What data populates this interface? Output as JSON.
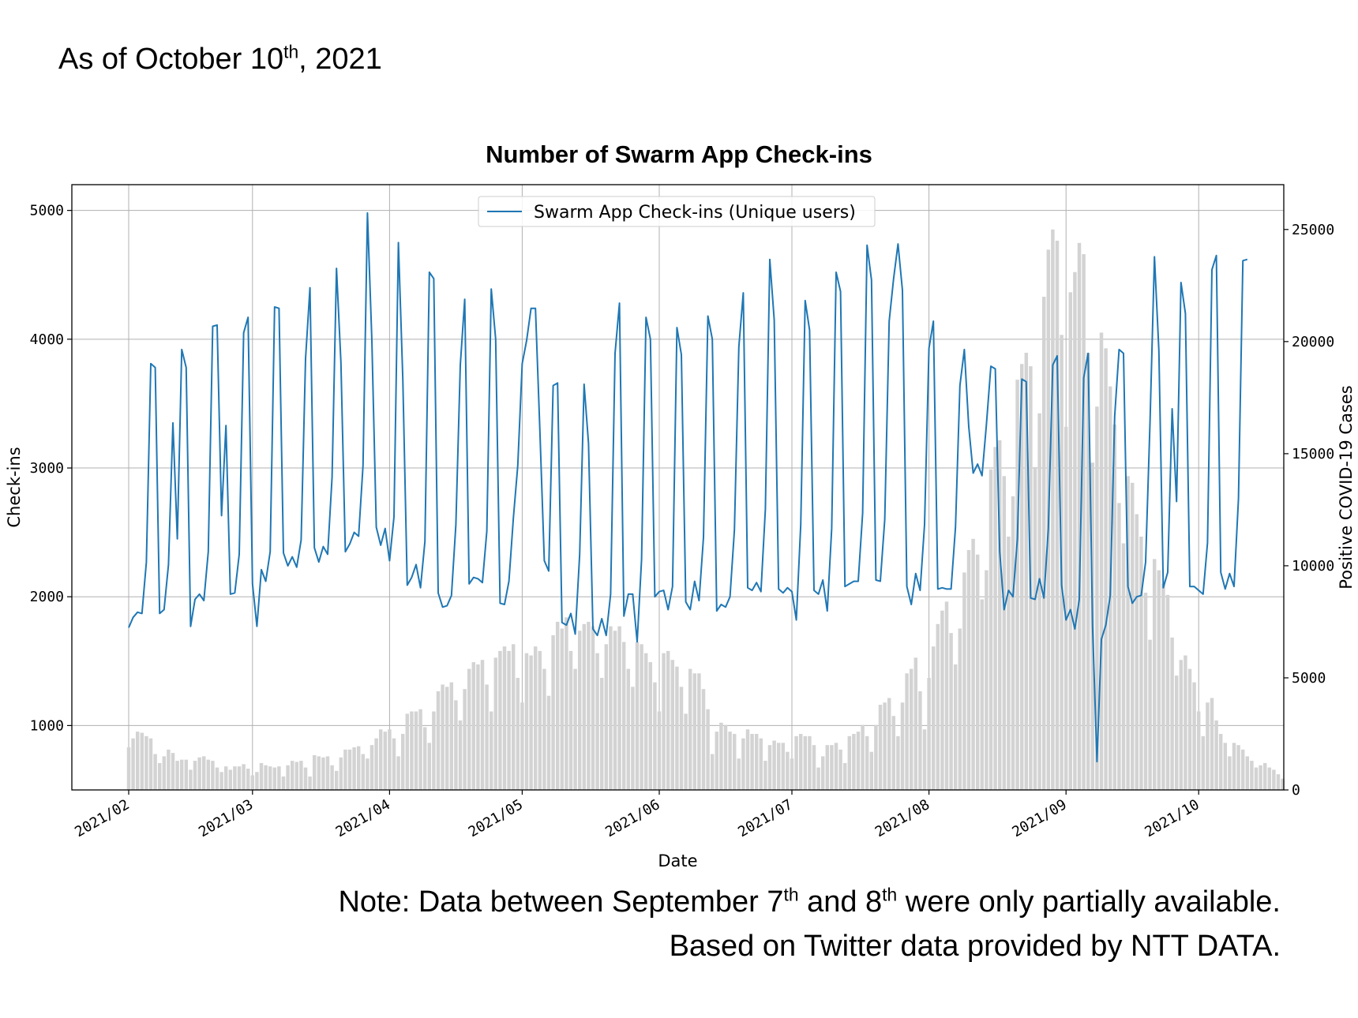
{
  "heading": {
    "prefix": "As of October 10",
    "sup": "th",
    "suffix": ", 2021"
  },
  "notes": {
    "line1_part1": "Note: Data between September 7",
    "line1_sup1": "th",
    "line1_part2": " and 8",
    "line1_sup2": "th",
    "line1_part3": " were only partially available.",
    "line2": "Based on Twitter data provided by NTT DATA."
  },
  "chart_data": {
    "type": "line",
    "title": "Number of Swarm App Check-ins",
    "xlabel": "Date",
    "ylabel": "Check-ins",
    "y2label": "Positive COVID-19 Cases",
    "x_start": "2021/02/01",
    "x_ticks": [
      "2021/02",
      "2021/03",
      "2021/04",
      "2021/05",
      "2021/06",
      "2021/07",
      "2021/08",
      "2021/09",
      "2021/10"
    ],
    "ylim": [
      500,
      5200
    ],
    "y_ticks": [
      1000,
      2000,
      3000,
      4000,
      5000
    ],
    "y2lim": [
      0,
      27000
    ],
    "y2_ticks": [
      0,
      5000,
      10000,
      15000,
      20000,
      25000
    ],
    "grid": true,
    "legend_position": "top-center",
    "colors": {
      "line": "#1f77b4",
      "bars": "#d3d3d3",
      "grid": "#b0b0b0"
    },
    "series": [
      {
        "name": "Swarm App Check-ins (Unique users)",
        "kind": "line",
        "axis": "left",
        "values": [
          1760,
          1840,
          1880,
          1870,
          2270,
          3810,
          3780,
          1870,
          1900,
          2250,
          3350,
          2450,
          3920,
          3780,
          1770,
          1980,
          2020,
          1970,
          2350,
          4100,
          4110,
          2630,
          3330,
          2020,
          2030,
          2330,
          4050,
          4170,
          2100,
          1770,
          2210,
          2120,
          2350,
          4250,
          4240,
          2340,
          2240,
          2310,
          2230,
          2440,
          3850,
          4400,
          2380,
          2270,
          2390,
          2330,
          2930,
          4550,
          3820,
          2350,
          2410,
          2500,
          2470,
          3020,
          4980,
          3990,
          2540,
          2400,
          2530,
          2280,
          2620,
          4750,
          3690,
          2090,
          2150,
          2250,
          2070,
          2430,
          4520,
          4470,
          2030,
          1920,
          1930,
          2010,
          2560,
          3800,
          4310,
          2100,
          2150,
          2140,
          2110,
          2510,
          4390,
          4000,
          1950,
          1940,
          2120,
          2610,
          3020,
          3810,
          3990,
          4240,
          4240,
          3290,
          2280,
          2200,
          3640,
          3660,
          1800,
          1780,
          1870,
          1710,
          2330,
          3650,
          3190,
          1750,
          1700,
          1830,
          1700,
          2020,
          3890,
          4280,
          1850,
          2020,
          2020,
          1650,
          2290,
          4170,
          4000,
          2000,
          2040,
          2050,
          1900,
          2080,
          4090,
          3880,
          1960,
          1900,
          2120,
          1970,
          2460,
          4180,
          4000,
          1890,
          1940,
          1920,
          2000,
          2520,
          3940,
          4360,
          2070,
          2050,
          2110,
          2040,
          2680,
          4620,
          4150,
          2060,
          2030,
          2070,
          2040,
          1820,
          2560,
          4300,
          4070,
          2050,
          2020,
          2130,
          1890,
          2530,
          4520,
          4370,
          2080,
          2100,
          2120,
          2120,
          2650,
          4730,
          4460,
          2130,
          2120,
          2600,
          4140,
          4470,
          4740,
          4380,
          2080,
          1940,
          2180,
          2050,
          2560,
          3930,
          4140,
          2060,
          2070,
          2060,
          2060,
          2540,
          3640,
          3920,
          3320,
          2960,
          3030,
          2940,
          3340,
          3790,
          3770,
          2350,
          1900,
          2050,
          2000,
          2450,
          3690,
          3670,
          1990,
          1980,
          2140,
          1990,
          2530,
          3800,
          3870,
          2090,
          1820,
          1900,
          1750,
          1980,
          3700,
          3890,
          1770,
          720,
          1670,
          1780,
          2010,
          3400,
          3920,
          3890,
          2080,
          1950,
          2000,
          2010,
          2270,
          3360,
          4640,
          3910,
          2070,
          2190,
          3460,
          2740,
          4440,
          4200,
          2080,
          2080,
          2050,
          2020,
          2420,
          4540,
          4650,
          2190,
          2060,
          2180,
          2080,
          2760,
          4610,
          4620
        ]
      },
      {
        "name": "Positive COVID-19 Cases",
        "kind": "bar",
        "axis": "right",
        "values": [
          1900,
          2300,
          2600,
          2550,
          2400,
          2300,
          1600,
          1200,
          1500,
          1800,
          1650,
          1300,
          1350,
          1350,
          900,
          1300,
          1450,
          1500,
          1350,
          1300,
          1000,
          800,
          1050,
          900,
          1050,
          1050,
          1150,
          950,
          650,
          800,
          1200,
          1100,
          1050,
          1000,
          1050,
          600,
          1100,
          1300,
          1250,
          1300,
          1000,
          600,
          1550,
          1500,
          1450,
          1500,
          1100,
          850,
          1450,
          1800,
          1800,
          1900,
          1950,
          1600,
          1400,
          2000,
          2300,
          2700,
          2600,
          2700,
          2300,
          1500,
          2500,
          3400,
          3500,
          3500,
          3600,
          2800,
          2100,
          3500,
          4400,
          4700,
          4600,
          4800,
          4000,
          3100,
          4500,
          5400,
          5700,
          5600,
          5800,
          4700,
          3500,
          5900,
          6200,
          6400,
          6200,
          6500,
          5000,
          3900,
          6100,
          6000,
          6400,
          6200,
          5400,
          4200,
          6900,
          7500,
          7200,
          7700,
          6200,
          5400,
          7100,
          7400,
          7500,
          7300,
          6100,
          5000,
          6500,
          7300,
          7100,
          7300,
          6600,
          5400,
          4600,
          6600,
          6500,
          6100,
          5700,
          4800,
          3500,
          6100,
          6200,
          5800,
          5500,
          4600,
          3400,
          5400,
          5200,
          5200,
          4500,
          3600,
          1600,
          2600,
          3000,
          2900,
          2600,
          2500,
          1400,
          2300,
          2700,
          2500,
          2500,
          2300,
          1300,
          2000,
          2200,
          2100,
          2100,
          1700,
          1400,
          2400,
          2500,
          2400,
          2400,
          2000,
          1000,
          1500,
          2000,
          2000,
          2100,
          1800,
          1200,
          2400,
          2500,
          2600,
          2900,
          2400,
          1700,
          2900,
          3800,
          3900,
          4100,
          3300,
          2400,
          3900,
          5200,
          5400,
          5900,
          4400,
          2700,
          5000,
          6400,
          7400,
          8000,
          8400,
          7000,
          5600,
          7200,
          9700,
          10700,
          11200,
          10500,
          8500,
          9800,
          14300,
          15300,
          15600,
          14000,
          11300,
          13100,
          18300,
          19000,
          19500,
          18900,
          14400,
          16800,
          22000,
          24100,
          25000,
          24500,
          20300,
          16200,
          22200,
          23100,
          24400,
          23900,
          19500,
          14600,
          17100,
          20400,
          19700,
          18000,
          16300,
          12800,
          11000,
          14000,
          13700,
          12300,
          11300,
          8800,
          6700,
          10300,
          9800,
          9200,
          8700,
          6800,
          5100,
          5800,
          6000,
          5400,
          4800,
          3500,
          2400,
          3900,
          4100,
          3100,
          2500,
          2100,
          1500,
          2100,
          2000,
          1800,
          1500,
          1300,
          1000,
          1100,
          1200,
          1000,
          900,
          700,
          500
        ]
      }
    ]
  }
}
